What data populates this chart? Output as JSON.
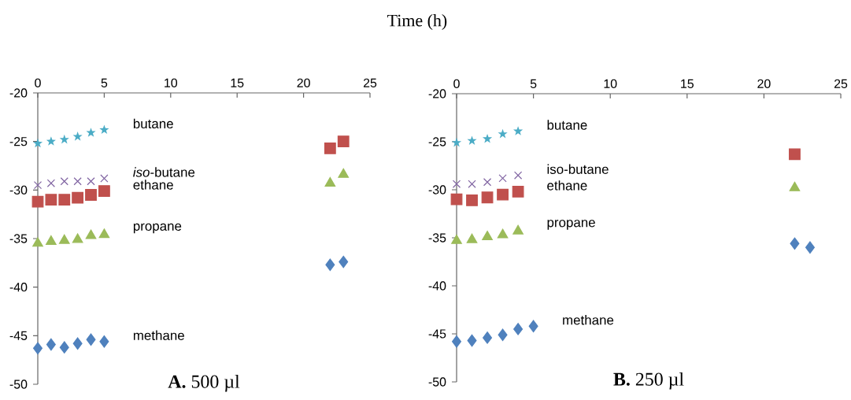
{
  "chart_data": [
    {
      "type": "scatter",
      "title": "**A.** 500 µl",
      "xlabel": "Time (h)",
      "xlim": [
        0,
        25
      ],
      "ylim": [
        -50,
        -20
      ],
      "xticks": [
        0,
        5,
        10,
        15,
        20,
        25
      ],
      "yticks": [
        -50,
        -45,
        -40,
        -35,
        -30,
        -25,
        -20
      ],
      "series": [
        {
          "name": "butane",
          "color": "#4bacc6",
          "marker": "star",
          "x": [
            0,
            1,
            2,
            3,
            4,
            5
          ],
          "values": [
            -25.2,
            -25.0,
            -24.8,
            -24.5,
            -24.1,
            -23.8
          ]
        },
        {
          "name": "*iso*-butane",
          "color": "#8064a2",
          "marker": "cross",
          "x": [
            0,
            1,
            2,
            3,
            4,
            5
          ],
          "values": [
            -29.5,
            -29.3,
            -29.1,
            -29.1,
            -29.1,
            -28.8
          ]
        },
        {
          "name": "ethane",
          "color": "#c0504d",
          "marker": "square",
          "x": [
            0,
            1,
            2,
            3,
            4,
            5,
            22,
            23
          ],
          "values": [
            -31.2,
            -31.0,
            -31.0,
            -30.8,
            -30.5,
            -30.1,
            -25.7,
            -25.0
          ]
        },
        {
          "name": "propane",
          "color": "#9bbb59",
          "marker": "triangle",
          "x": [
            0,
            1,
            2,
            3,
            4,
            5,
            22,
            23
          ],
          "values": [
            -35.5,
            -35.3,
            -35.2,
            -35.1,
            -34.7,
            -34.6,
            -29.3,
            -28.4
          ]
        },
        {
          "name": "methane",
          "color": "#4f81bd",
          "marker": "diamond",
          "x": [
            0,
            1,
            2,
            3,
            4,
            5,
            22,
            23
          ],
          "values": [
            -46.3,
            -45.9,
            -46.2,
            -45.8,
            -45.4,
            -45.6,
            -37.7,
            -37.4
          ]
        }
      ]
    },
    {
      "type": "scatter",
      "title": "**B.** 250 µl",
      "xlim": [
        0,
        25
      ],
      "ylim": [
        -50,
        -20
      ],
      "xticks": [
        0,
        5,
        10,
        15,
        20,
        25
      ],
      "yticks": [
        -50,
        -45,
        -40,
        -35,
        -30,
        -25,
        -20
      ],
      "series": [
        {
          "name": "butane",
          "color": "#4bacc6",
          "marker": "star",
          "x": [
            0,
            1,
            2,
            3,
            4
          ],
          "values": [
            -25.1,
            -24.9,
            -24.7,
            -24.2,
            -23.9
          ]
        },
        {
          "name": "iso-butane",
          "color": "#8064a2",
          "marker": "cross",
          "x": [
            0,
            1,
            2,
            3,
            4
          ],
          "values": [
            -29.4,
            -29.4,
            -29.2,
            -28.8,
            -28.5
          ]
        },
        {
          "name": "ethane",
          "color": "#c0504d",
          "marker": "square",
          "x": [
            0,
            1,
            2,
            3,
            4,
            22
          ],
          "values": [
            -31.0,
            -31.1,
            -30.8,
            -30.5,
            -30.2,
            -26.3
          ]
        },
        {
          "name": "propane",
          "color": "#9bbb59",
          "marker": "triangle",
          "x": [
            0,
            1,
            2,
            3,
            4,
            22
          ],
          "values": [
            -35.3,
            -35.2,
            -34.9,
            -34.7,
            -34.3,
            -29.8
          ]
        },
        {
          "name": "methane",
          "color": "#4f81bd",
          "marker": "diamond",
          "x": [
            0,
            1,
            2,
            3,
            4,
            5,
            22,
            23
          ],
          "values": [
            -45.8,
            -45.7,
            -45.4,
            -45.1,
            -44.5,
            -44.2,
            -35.6,
            -36.0
          ]
        }
      ]
    }
  ]
}
